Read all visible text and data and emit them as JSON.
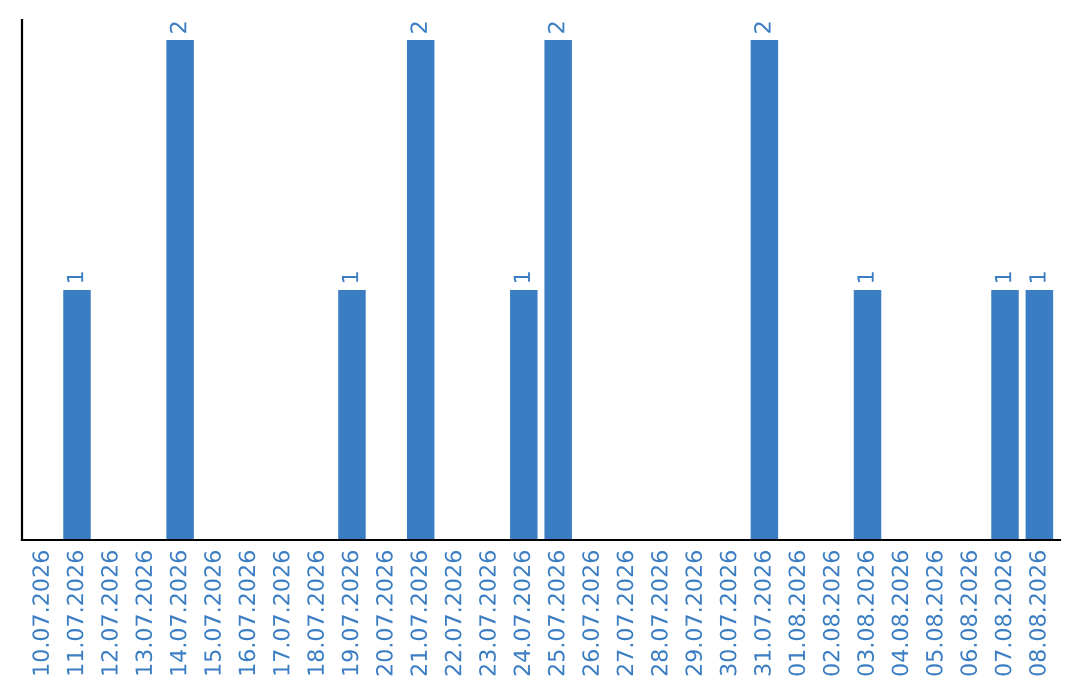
{
  "chart_data": {
    "type": "bar",
    "categories": [
      "10.07.2026",
      "11.07.2026",
      "12.07.2026",
      "13.07.2026",
      "14.07.2026",
      "15.07.2026",
      "16.07.2026",
      "17.07.2026",
      "18.07.2026",
      "19.07.2026",
      "20.07.2026",
      "21.07.2026",
      "22.07.2026",
      "23.07.2026",
      "24.07.2026",
      "25.07.2026",
      "26.07.2026",
      "27.07.2026",
      "28.07.2026",
      "29.07.2026",
      "30.07.2026",
      "31.07.2026",
      "01.08.2026",
      "02.08.2026",
      "03.08.2026",
      "04.08.2026",
      "05.08.2026",
      "06.08.2026",
      "07.08.2026",
      "08.08.2026"
    ],
    "values": [
      0,
      1,
      0,
      0,
      2,
      0,
      0,
      0,
      0,
      1,
      0,
      2,
      0,
      0,
      1,
      2,
      0,
      0,
      0,
      0,
      0,
      2,
      0,
      0,
      1,
      0,
      0,
      0,
      1,
      1
    ],
    "value_labels": [
      null,
      "1",
      null,
      null,
      "2",
      null,
      null,
      null,
      null,
      "1",
      null,
      "2",
      null,
      null,
      "1",
      "2",
      null,
      null,
      null,
      null,
      null,
      "2",
      null,
      null,
      "1",
      null,
      null,
      null,
      "1",
      "1"
    ],
    "color": "#3a7dc2",
    "tick_labels": "x",
    "grid": false,
    "legend": false
  }
}
